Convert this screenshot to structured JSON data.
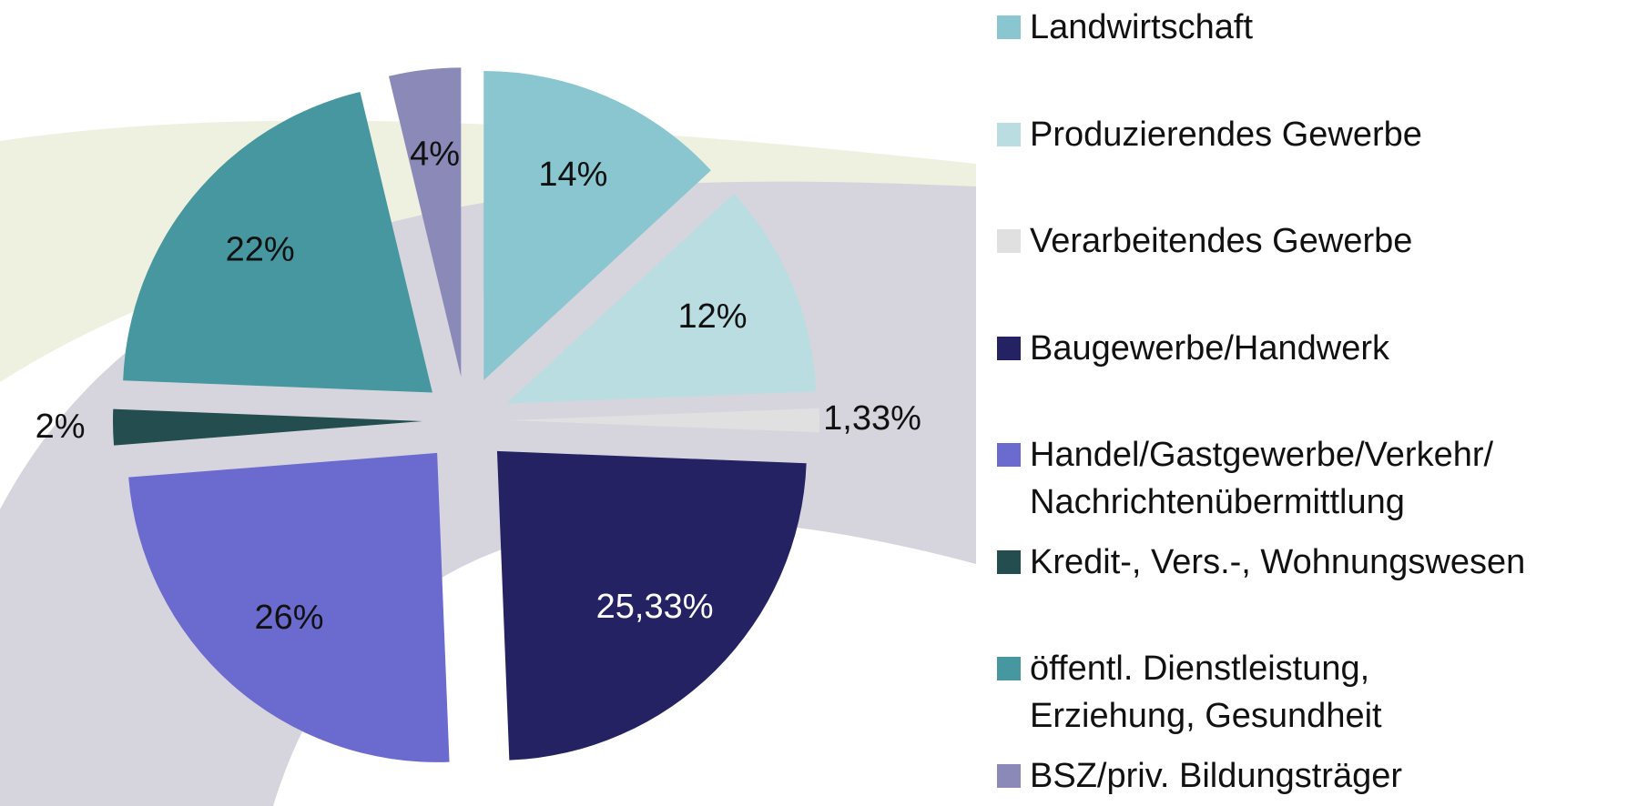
{
  "chart_data": {
    "type": "pie",
    "categories": [
      "Landwirtschaft",
      "Produzierendes Gewerbe",
      "Verarbeitendes Gewerbe",
      "Baugewerbe/Handwerk",
      "Handel/Gastgewerbe/Verkehr/\nNachrichtenübermittlung",
      "Kredit-, Vers.-, Wohnungswesen",
      "öffentl. Dienstleistung,\nErziehung, Gesundheit",
      "BSZ/priv. Bildungsträger"
    ],
    "values": [
      14,
      12,
      1.33,
      25.33,
      26,
      2,
      22,
      4
    ],
    "value_labels": [
      "14%",
      "12%",
      "1,33%",
      "25,33%",
      "26%",
      "2%",
      "22%",
      "4%"
    ],
    "colors": [
      "#8ac6cf",
      "#b9dde1",
      "#e0e0e0",
      "#242262",
      "#6b6bcf",
      "#234d4f",
      "#46979f",
      "#8a89b8"
    ]
  }
}
